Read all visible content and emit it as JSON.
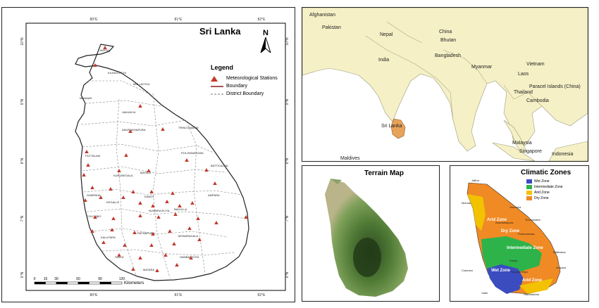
{
  "main_map": {
    "title": "Sri Lanka",
    "north_label": "N",
    "legend": {
      "title": "Legend",
      "items": [
        {
          "label": "Meteorological Stations",
          "symbol": "triangle",
          "color": "#c0392b"
        },
        {
          "label": "Boundary",
          "symbol": "line",
          "color": "#8b1a1a"
        },
        {
          "label": "District Boundary",
          "symbol": "dash",
          "color": "#777777"
        }
      ]
    },
    "lon_labels_top": [
      "80°E",
      "81°E",
      "82°E"
    ],
    "lon_labels_bottom": [
      "80°E",
      "81°E",
      "82°E"
    ],
    "lat_labels": [
      "10°N",
      "9°N",
      "8°N",
      "7°N",
      "6°N"
    ],
    "scale_labels": [
      "0",
      "15",
      "30",
      "60",
      "90",
      "120"
    ],
    "scale_unit": "Kilometers",
    "district_labels": [
      "JAFFNA",
      "KILINOCHCHI",
      "MULLAITIVU",
      "MANNAR",
      "VAVUNIYA",
      "TRINCOMALEE",
      "ANURADHAPURA",
      "POLONNARUWA",
      "PUTTALAM",
      "KURUNEGALA",
      "MATALE",
      "BATTICALOA",
      "GAMPAHA",
      "KANDY",
      "COLOMBO",
      "NUWARA ELIYA",
      "BADULLA",
      "AMPARA",
      "KALUTARA",
      "RATNAPURA",
      "MONARAGALA",
      "GALLE",
      "MATARA",
      "HAMBANTOTA",
      "KEGALLE"
    ]
  },
  "locator_map": {
    "countries": [
      "Afghanistan",
      "Pakistan",
      "Nepal",
      "China",
      "Bhutan",
      "Bangladesh",
      "India",
      "Myanmar",
      "Vietnam",
      "Laos",
      "Paracel Islands (China)",
      "Thailand",
      "Cambodia",
      "Sri Lanka",
      "Malaysia",
      "Singapore",
      "Maldives",
      "Indonesia"
    ],
    "colors": {
      "land": "#f5f0c6",
      "sea": "#ffffff",
      "highlight": "#e8a35a"
    }
  },
  "terrain_map": {
    "title": "Terrain Map"
  },
  "climate_map": {
    "title": "Climatic Zones",
    "zones": [
      {
        "label": "Wet Zone",
        "color": "#3b4cc0"
      },
      {
        "label": "Intermediate Zone",
        "color": "#2db34a"
      },
      {
        "label": "Arid Zone",
        "color": "#f2c200"
      },
      {
        "label": "Dry Zone",
        "color": "#f08a24"
      }
    ],
    "map_labels": [
      "Jaffna",
      "Mannar",
      "Vavuniya",
      "Trincomalee",
      "Anuradhapura",
      "Dry Zone",
      "Polonnaruwa",
      "Arid Zone",
      "Intermediate Zone",
      "Batticaloa",
      "Kandy",
      "Ampara",
      "Wet Zone",
      "Nuwara Eliya",
      "Colombo",
      "Arid Zone",
      "Hambantota",
      "Galle"
    ]
  }
}
